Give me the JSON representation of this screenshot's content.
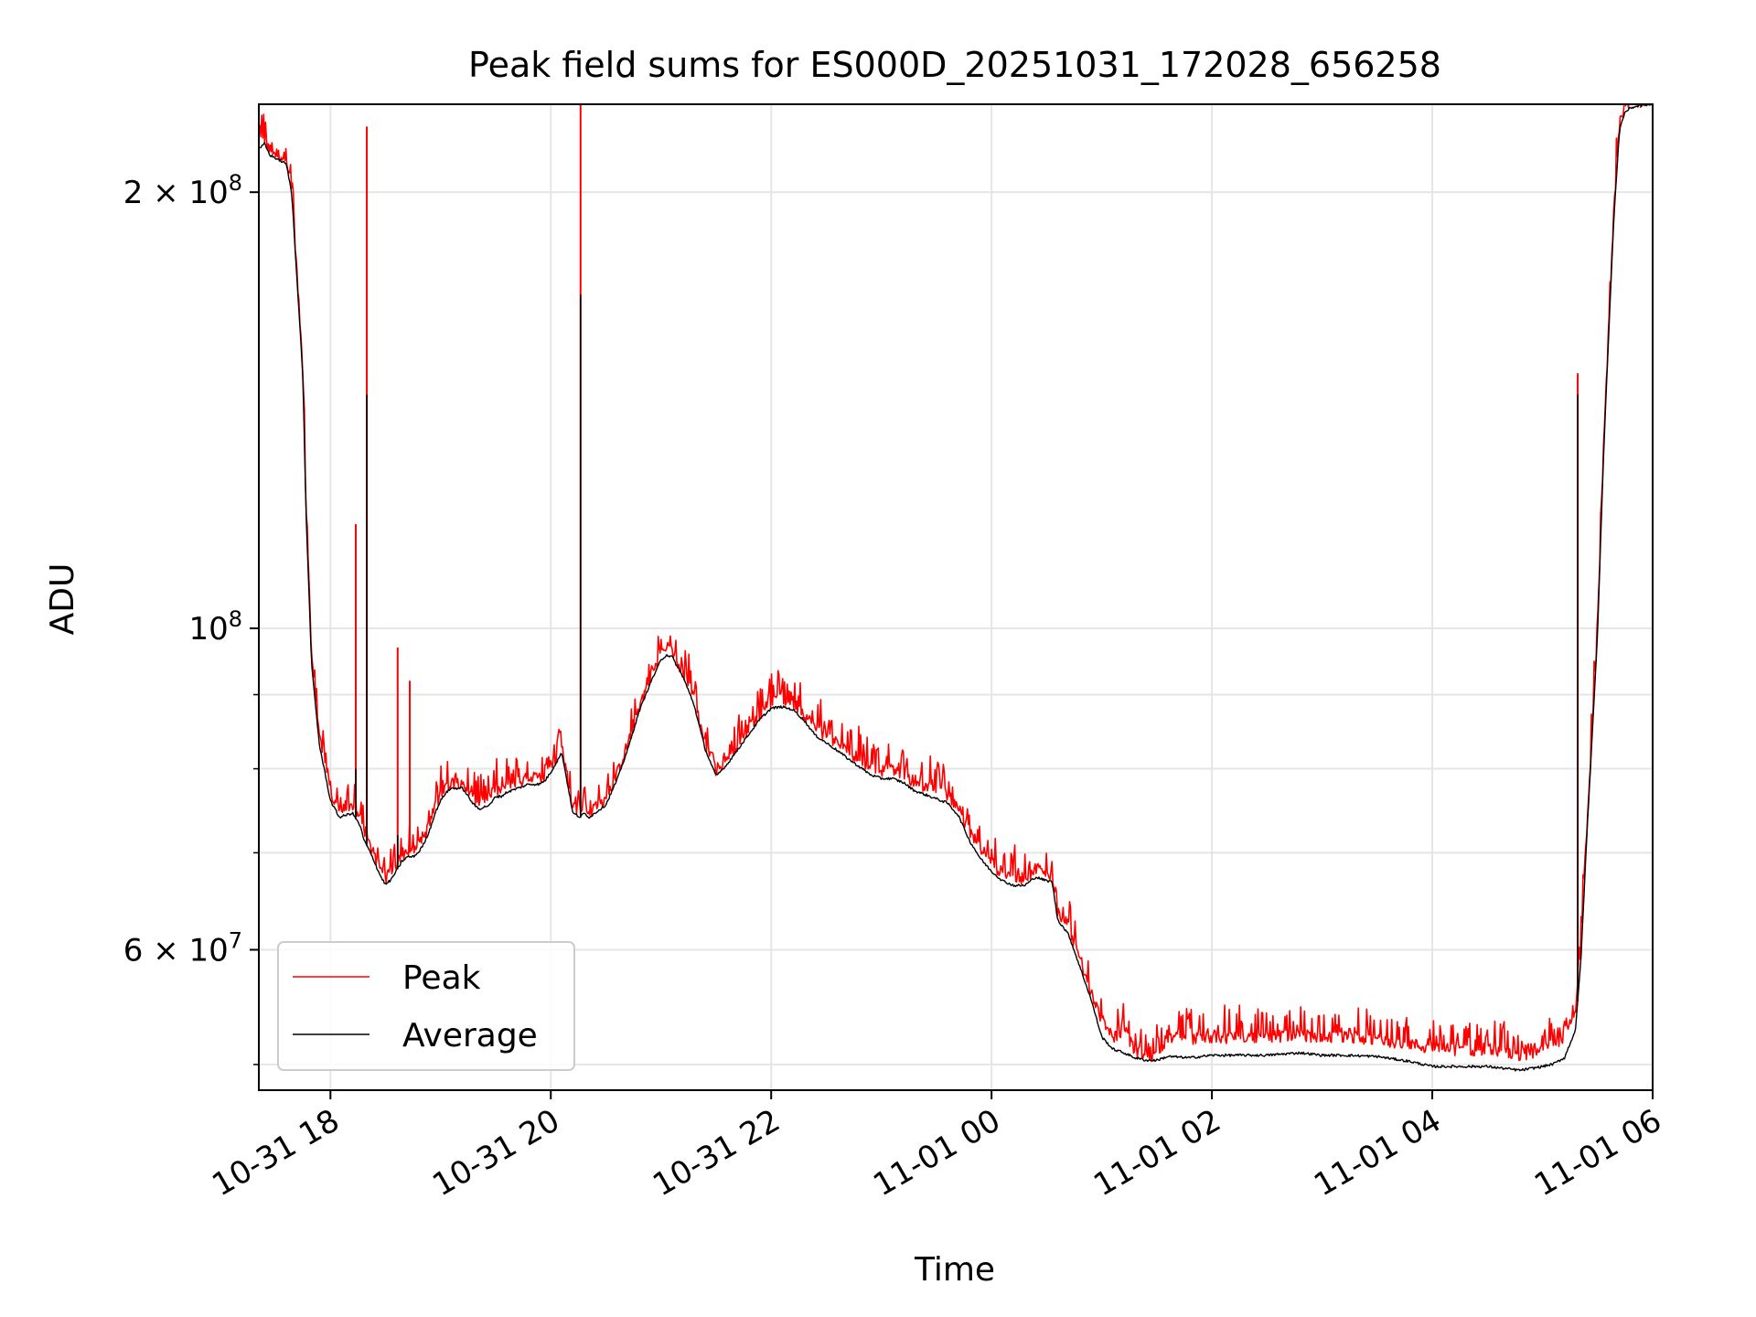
{
  "chart_data": {
    "type": "line",
    "title": "Peak field sums for ES000D_20251031_172028_656258",
    "xlabel": "Time",
    "ylabel": "ADU",
    "yscale": "log",
    "xlim_hours": [
      -0.65,
      12.0
    ],
    "ylim": [
      48000000,
      230000000
    ],
    "grid": true,
    "legend_position": "lower-left",
    "x_ticks": [
      {
        "t": 0,
        "label": "10-31 18"
      },
      {
        "t": 2,
        "label": "10-31 20"
      },
      {
        "t": 4,
        "label": "10-31 22"
      },
      {
        "t": 6,
        "label": "11-01 00"
      },
      {
        "t": 8,
        "label": "11-01 02"
      },
      {
        "t": 10,
        "label": "11-01 04"
      },
      {
        "t": 12,
        "label": "11-01 06"
      }
    ],
    "y_ticks_major": [
      {
        "v": 60000000,
        "base": "6 × 10",
        "exp": "7"
      },
      {
        "v": 100000000,
        "base": "10",
        "exp": "8"
      },
      {
        "v": 200000000,
        "base": "2 × 10",
        "exp": "8"
      }
    ],
    "y_ticks_minor": [
      50000000,
      70000000,
      80000000,
      90000000
    ],
    "x_unit_note": "hours relative to 2025-10-31 18:00",
    "series": [
      {
        "name": "Peak",
        "color": "#ff0000",
        "noise": 0.02,
        "t": [
          -0.64,
          -0.6,
          -0.55,
          -0.45,
          -0.4,
          -0.35,
          -0.25,
          -0.22,
          -0.17,
          -0.1,
          0.0,
          0.08,
          0.2,
          0.27,
          0.3,
          0.38,
          0.45,
          0.5,
          0.55,
          0.6,
          0.65,
          0.7,
          0.75,
          0.8,
          0.85,
          0.9,
          0.95,
          1.0,
          1.05,
          1.1,
          1.2,
          1.3,
          1.35,
          1.45,
          1.5,
          1.55,
          1.6,
          1.7,
          1.8,
          1.9,
          1.95,
          2.0,
          2.1,
          2.2,
          2.27,
          2.3,
          2.35,
          2.5,
          2.6,
          2.7,
          2.8,
          2.9,
          3.0,
          3.05,
          3.1,
          3.2,
          3.3,
          3.4,
          3.5,
          3.6,
          3.7,
          3.8,
          3.9,
          4.0,
          4.1,
          4.2,
          4.3,
          4.4,
          4.5,
          4.6,
          4.7,
          4.8,
          4.9,
          5.0,
          5.1,
          5.2,
          5.3,
          5.4,
          5.5,
          5.6,
          5.7,
          5.8,
          5.9,
          6.0,
          6.1,
          6.2,
          6.3,
          6.4,
          6.5,
          6.55,
          6.6,
          6.7,
          6.8,
          6.9,
          7.0,
          7.1,
          7.2,
          7.3,
          7.4,
          7.5,
          7.6,
          7.8,
          8.0,
          8.2,
          8.5,
          8.8,
          9.0,
          9.2,
          9.5,
          9.8,
          10.0,
          10.2,
          10.5,
          10.8,
          11.0,
          11.1,
          11.2,
          11.3,
          11.35,
          11.4,
          11.5,
          11.55,
          11.6,
          11.65,
          11.7,
          11.75,
          11.8,
          11.9,
          12.0
        ],
        "v": [
          215000000,
          217000000,
          213000000,
          211000000,
          210000000,
          200000000,
          150000000,
          120000000,
          95000000,
          84000000,
          76500000,
          74500000,
          75000000,
          73500000,
          72000000,
          70000000,
          68000000,
          67000000,
          67500000,
          68500000,
          69500000,
          70000000,
          70000000,
          70500000,
          71500000,
          73000000,
          75000000,
          76500000,
          77500000,
          78000000,
          78000000,
          76000000,
          75500000,
          76000000,
          77000000,
          77000000,
          77500000,
          78000000,
          78500000,
          78500000,
          79000000,
          80000000,
          82500000,
          75000000,
          74500000,
          75000000,
          74500000,
          76000000,
          79000000,
          83000000,
          88000000,
          92000000,
          95500000,
          96500000,
          96000000,
          93000000,
          89000000,
          83000000,
          79500000,
          81000000,
          83000000,
          85000000,
          87000000,
          88500000,
          89000000,
          88500000,
          87000000,
          85000000,
          84000000,
          83000000,
          82000000,
          81000000,
          80000000,
          79500000,
          79500000,
          79000000,
          78000000,
          77500000,
          77000000,
          76500000,
          75000000,
          72000000,
          70000000,
          68500000,
          67500000,
          67000000,
          67000000,
          68000000,
          67500000,
          67500000,
          63500000,
          62000000,
          59000000,
          56000000,
          53500000,
          52000000,
          52500000,
          51000000,
          50500000,
          50500000,
          52000000,
          51800000,
          52000000,
          52000000,
          52000000,
          52200000,
          52000000,
          52000000,
          51800000,
          51500000,
          51000000,
          51000000,
          51000000,
          50500000,
          51000000,
          51500000,
          52000000,
          54000000,
          60000000,
          72000000,
          100000000,
          130000000,
          160000000,
          195000000,
          222000000,
          228000000,
          229000000,
          230000000,
          230000000
        ],
        "spikes": [
          {
            "t": 0.23,
            "v": 118000000
          },
          {
            "t": 0.33,
            "v": 222000000
          },
          {
            "t": 0.61,
            "v": 97000000
          },
          {
            "t": 0.72,
            "v": 92000000
          },
          {
            "t": 2.27,
            "v": 230000000
          },
          {
            "t": 11.32,
            "v": 150000000
          }
        ]
      },
      {
        "name": "Average",
        "color": "#000000",
        "noise": 0.004,
        "t": [
          -0.64,
          -0.6,
          -0.55,
          -0.45,
          -0.4,
          -0.35,
          -0.25,
          -0.22,
          -0.17,
          -0.1,
          0.0,
          0.08,
          0.2,
          0.27,
          0.3,
          0.38,
          0.45,
          0.5,
          0.55,
          0.6,
          0.65,
          0.7,
          0.75,
          0.8,
          0.85,
          0.9,
          0.95,
          1.0,
          1.05,
          1.1,
          1.2,
          1.3,
          1.35,
          1.45,
          1.5,
          1.55,
          1.6,
          1.7,
          1.8,
          1.9,
          1.95,
          2.0,
          2.1,
          2.2,
          2.27,
          2.3,
          2.35,
          2.5,
          2.6,
          2.7,
          2.8,
          2.9,
          3.0,
          3.05,
          3.1,
          3.2,
          3.3,
          3.4,
          3.5,
          3.6,
          3.7,
          3.8,
          3.9,
          4.0,
          4.1,
          4.2,
          4.3,
          4.4,
          4.5,
          4.6,
          4.7,
          4.8,
          4.9,
          5.0,
          5.1,
          5.2,
          5.3,
          5.4,
          5.5,
          5.6,
          5.7,
          5.8,
          5.9,
          6.0,
          6.1,
          6.2,
          6.3,
          6.4,
          6.5,
          6.55,
          6.6,
          6.7,
          6.8,
          6.9,
          7.0,
          7.1,
          7.2,
          7.3,
          7.4,
          7.5,
          7.6,
          7.8,
          8.0,
          8.2,
          8.5,
          8.8,
          9.0,
          9.2,
          9.5,
          9.8,
          10.0,
          10.2,
          10.5,
          10.8,
          11.0,
          11.1,
          11.2,
          11.3,
          11.35,
          11.4,
          11.5,
          11.55,
          11.6,
          11.65,
          11.7,
          11.75,
          11.8,
          11.9,
          12.0
        ],
        "v": [
          214000000,
          216000000,
          212000000,
          210000000,
          209000000,
          199000000,
          149000000,
          119000000,
          94000000,
          83000000,
          76000000,
          74000000,
          74500000,
          73000000,
          71500000,
          69500000,
          67500000,
          66500000,
          67000000,
          68000000,
          69000000,
          69500000,
          69500000,
          70000000,
          71000000,
          72500000,
          74500000,
          76000000,
          77000000,
          77500000,
          77500000,
          75500000,
          75000000,
          75500000,
          76500000,
          76500000,
          77000000,
          77500000,
          78000000,
          78000000,
          78500000,
          79500000,
          82000000,
          74500000,
          74000000,
          74500000,
          74000000,
          75500000,
          78500000,
          82500000,
          87500000,
          91500000,
          95000000,
          95800000,
          95500000,
          92500000,
          88500000,
          82500000,
          79000000,
          80500000,
          82500000,
          84500000,
          86500000,
          88000000,
          88200000,
          87800000,
          86300000,
          84300000,
          83300000,
          82300000,
          81200000,
          80200000,
          79200000,
          78700000,
          78700000,
          78200000,
          77200000,
          76700000,
          76200000,
          75700000,
          74200000,
          71300000,
          69300000,
          67900000,
          66900000,
          66400000,
          66400000,
          67300000,
          66900000,
          66800000,
          62900000,
          61400000,
          58400000,
          55500000,
          52200000,
          51200000,
          50900000,
          50500000,
          50300000,
          50300000,
          50600000,
          50500000,
          50700000,
          50700000,
          50700000,
          50900000,
          50700000,
          50700000,
          50600000,
          50200000,
          49800000,
          49800000,
          49800000,
          49500000,
          49800000,
          50000000,
          50500000,
          52800000,
          59200000,
          71200000,
          99000000,
          129000000,
          159000000,
          193000000,
          221000000,
          227000000,
          228500000,
          229500000,
          229800000
        ],
        "spikes": [
          {
            "t": 0.23,
            "v": 80000000
          },
          {
            "t": 0.33,
            "v": 145000000
          },
          {
            "t": 0.61,
            "v": 72000000
          },
          {
            "t": 2.27,
            "v": 170000000
          },
          {
            "t": 11.32,
            "v": 145000000
          }
        ]
      }
    ]
  }
}
